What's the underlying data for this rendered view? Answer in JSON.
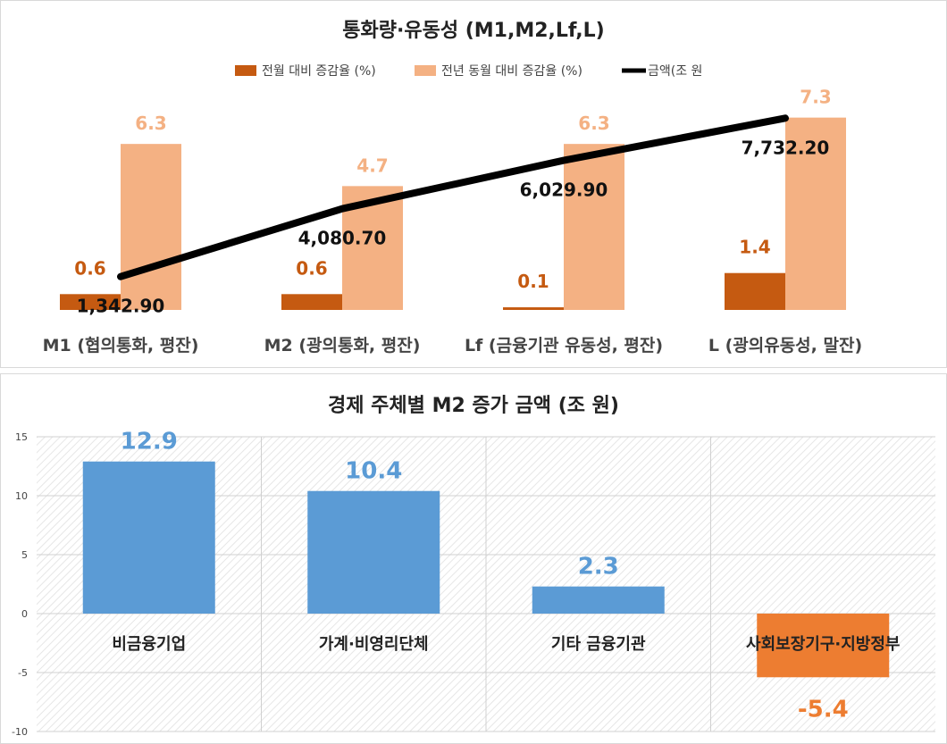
{
  "chart_data": [
    {
      "type": "bar",
      "title": "통화량·유동성 (M1,M2,Lf,L)",
      "categories": [
        "M1 (협의통화, 평잔)",
        "M2 (광의통화, 평잔)",
        "Lf (금융기관 유동성, 평잔)",
        "L (광의유동성, 말잔)"
      ],
      "series": [
        {
          "name": "전월 대비 증감율 (%)",
          "kind": "bar",
          "values": [
            0.6,
            0.6,
            0.1,
            1.4
          ],
          "labels": [
            "0.6",
            "0.6",
            "0.1",
            "1.4"
          ]
        },
        {
          "name": "전년 동월 대비 증감율 (%)",
          "kind": "bar",
          "values": [
            6.3,
            4.7,
            6.3,
            7.3
          ],
          "labels": [
            "6.3",
            "4.7",
            "6.3",
            "7.3"
          ]
        },
        {
          "name": "금액(조 원",
          "kind": "line",
          "values": [
            1342.9,
            4080.7,
            6029.9,
            7732.2
          ],
          "labels": [
            "1,342.90",
            "4,080.70",
            "6,029.90",
            "7,732.20"
          ]
        }
      ],
      "bar_range": [
        0,
        8
      ],
      "line_range": [
        0,
        8500
      ],
      "colors": {
        "mom": "#c55a11",
        "yoy": "#f4b183",
        "line": "#000000"
      }
    },
    {
      "type": "bar",
      "title": "경제 주체별 M2 증가 금액 (조 원)",
      "categories": [
        "비금융기업",
        "가계·비영리단체",
        "기타 금융기관",
        "사회보장기구·지방정부"
      ],
      "values": [
        12.9,
        10.4,
        2.3,
        -5.4
      ],
      "labels": [
        "12.9",
        "10.4",
        "2.3",
        "-5.4"
      ],
      "ylim": [
        -10,
        15
      ],
      "yticks": [
        "15",
        "10",
        "5",
        "0",
        "-5",
        "-10"
      ],
      "ytick_values": [
        15,
        10,
        5,
        0,
        -5,
        -10
      ],
      "colors": {
        "positive": "#5b9bd5",
        "negative": "#ed7d31"
      }
    }
  ]
}
